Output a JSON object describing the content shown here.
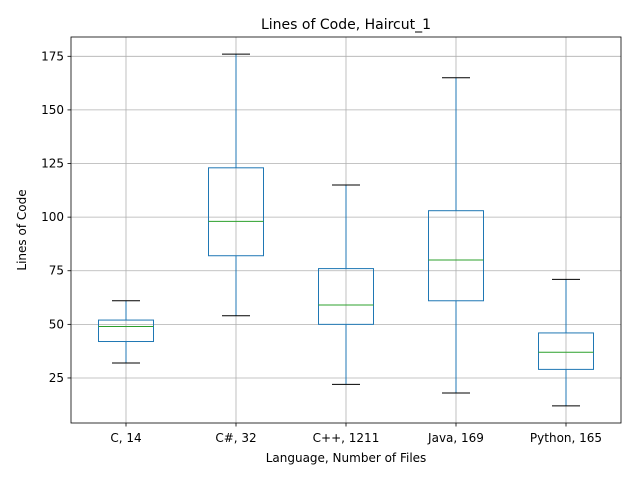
{
  "chart_data": {
    "type": "box",
    "title": "Lines of Code, Haircut_1",
    "xlabel": "Language, Number of Files",
    "ylabel": "Lines of Code",
    "ylim": [
      4,
      184
    ],
    "yticks": [
      25,
      50,
      75,
      100,
      125,
      150,
      175
    ],
    "grid": true,
    "categories": [
      "C, 14",
      "C#, 32",
      "C++, 1211",
      "Java, 169",
      "Python, 165"
    ],
    "boxes": [
      {
        "whisker_low": 32,
        "q1": 42,
        "median": 49,
        "q3": 52,
        "whisker_high": 61
      },
      {
        "whisker_low": 54,
        "q1": 82,
        "median": 98,
        "q3": 123,
        "whisker_high": 176
      },
      {
        "whisker_low": 22,
        "q1": 50,
        "median": 59,
        "q3": 76,
        "whisker_high": 115
      },
      {
        "whisker_low": 18,
        "q1": 61,
        "median": 80,
        "q3": 103,
        "whisker_high": 165
      },
      {
        "whisker_low": 12,
        "q1": 29,
        "median": 37,
        "q3": 46,
        "whisker_high": 71
      }
    ],
    "colors": {
      "box": "#1f77b4",
      "median": "#2ca02c",
      "cap": "#000000",
      "grid": "#b0b0b0"
    }
  }
}
